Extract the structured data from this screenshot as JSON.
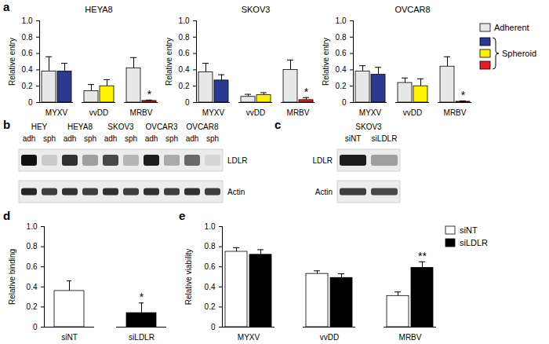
{
  "panel_labels": [
    "a",
    "b",
    "c",
    "d",
    "e"
  ],
  "chart_data": [
    {
      "type": "bar",
      "title": "HEYA8",
      "categories": [
        "MYXV",
        "vvDD",
        "MRBV"
      ],
      "y_label": "Relative entry",
      "ylim": [
        0,
        1
      ],
      "yticks": [
        0,
        0.2,
        0.4,
        0.6,
        0.8,
        {
          "value": 1,
          "label": "1.0"
        }
      ],
      "series": [
        {
          "name": "Adherent",
          "color": "#e6e7e8",
          "values": [
            0.38,
            0.14,
            0.42
          ],
          "error": [
            0.18,
            0.08,
            0.13
          ]
        },
        {
          "name": "Spheroid",
          "colors": [
            "#2b3990",
            "#fff200",
            "#ed1c24"
          ],
          "values": [
            0.38,
            0.2,
            0.02
          ],
          "error": [
            0.1,
            0.08,
            0.01
          ],
          "annotations": [
            null,
            null,
            "*"
          ]
        }
      ]
    },
    {
      "type": "bar",
      "title": "SKOV3",
      "categories": [
        "MYXV",
        "vvDD",
        "MRBV"
      ],
      "y_label": "Relative entry",
      "ylim": [
        0,
        1
      ],
      "yticks": [
        0,
        0.2,
        0.4,
        0.6,
        0.8,
        {
          "value": 1,
          "label": "1.0"
        }
      ],
      "series": [
        {
          "name": "Adherent",
          "color": "#e6e7e8",
          "values": [
            0.37,
            0.07,
            0.4
          ],
          "error": [
            0.11,
            0.03,
            0.12
          ]
        },
        {
          "name": "Spheroid",
          "colors": [
            "#2b3990",
            "#fff200",
            "#ed1c24"
          ],
          "values": [
            0.27,
            0.09,
            0.03
          ],
          "error": [
            0.07,
            0.03,
            0.03
          ],
          "annotations": [
            null,
            null,
            "*"
          ]
        }
      ]
    },
    {
      "type": "bar",
      "title": "OVCAR8",
      "categories": [
        "MYXV",
        "vvDD",
        "MRBV"
      ],
      "y_label": "Relative entry",
      "ylim": [
        0,
        1
      ],
      "yticks": [
        0,
        0.2,
        0.4,
        0.6,
        0.8,
        {
          "value": 1,
          "label": "1.0"
        }
      ],
      "legend": "right",
      "series": [
        {
          "name": "Adherent",
          "color": "#e6e7e8",
          "values": [
            0.38,
            0.24,
            0.44
          ],
          "error": [
            0.07,
            0.06,
            0.12
          ]
        },
        {
          "name": "Spheroid",
          "colors": [
            "#2b3990",
            "#fff200",
            "#ed1c24"
          ],
          "values": [
            0.34,
            0.2,
            0.01
          ],
          "error": [
            0.09,
            0.09,
            0.01
          ],
          "annotations": [
            null,
            null,
            "*"
          ]
        }
      ]
    },
    {
      "type": "bar",
      "categories": [
        "siNT",
        "siLDLR"
      ],
      "y_label": "Relative binding",
      "ylim": [
        0,
        1
      ],
      "yticks": [
        0,
        0.2,
        0.4,
        0.6,
        0.8,
        {
          "value": 1,
          "label": "1.0"
        }
      ],
      "values": [
        0.36,
        0.14
      ],
      "error": [
        0.1,
        0.1
      ],
      "colors": [
        "#ffffff",
        "#000000"
      ],
      "annotations": [
        null,
        "*"
      ]
    },
    {
      "type": "bar",
      "categories": [
        "MYXV",
        "vvDD",
        "MRBV"
      ],
      "y_label": "Relative viability",
      "ylim": [
        0,
        1
      ],
      "yticks": [
        0,
        0.2,
        0.4,
        0.6,
        0.8,
        {
          "value": 1,
          "label": "1.0"
        }
      ],
      "legend": "top-right",
      "series": [
        {
          "name": "siNT",
          "color": "#ffffff",
          "values": [
            0.75,
            0.53,
            0.31
          ],
          "error": [
            0.04,
            0.03,
            0.04
          ]
        },
        {
          "name": "siLDLR",
          "color": "#000000",
          "values": [
            0.72,
            0.49,
            0.59
          ],
          "error": [
            0.05,
            0.04,
            0.06
          ],
          "annotations": [
            null,
            null,
            "**"
          ]
        }
      ]
    }
  ],
  "blots": [
    {
      "groups": [
        {
          "label": "HEY",
          "lanes": [
            "adh",
            "sph"
          ]
        },
        {
          "label": "HEYA8",
          "lanes": [
            "adh",
            "sph"
          ]
        },
        {
          "label": "SKOV3",
          "lanes": [
            "adh",
            "sph"
          ]
        },
        {
          "label": "OVCAR3",
          "lanes": [
            "adh",
            "sph"
          ]
        },
        {
          "label": "OVCAR8",
          "lanes": [
            "adh",
            "sph"
          ]
        }
      ],
      "rows": [
        {
          "label": "LDLR",
          "intensity": [
            1.0,
            0.15,
            0.85,
            0.35,
            0.75,
            0.25,
            0.95,
            0.3,
            0.6,
            0.1
          ]
        },
        {
          "label": "Actin",
          "intensity": [
            0.9,
            0.8,
            0.85,
            0.8,
            0.85,
            0.8,
            0.85,
            0.8,
            0.85,
            0.8
          ]
        }
      ]
    },
    {
      "groups": [
        {
          "label": "SKOV3",
          "lanes": [
            "siNT",
            "siLDLR"
          ]
        }
      ],
      "rows": [
        {
          "label": "LDLR",
          "intensity": [
            0.95,
            0.35
          ]
        },
        {
          "label": "Actin",
          "intensity": [
            0.8,
            0.75
          ]
        }
      ]
    }
  ]
}
